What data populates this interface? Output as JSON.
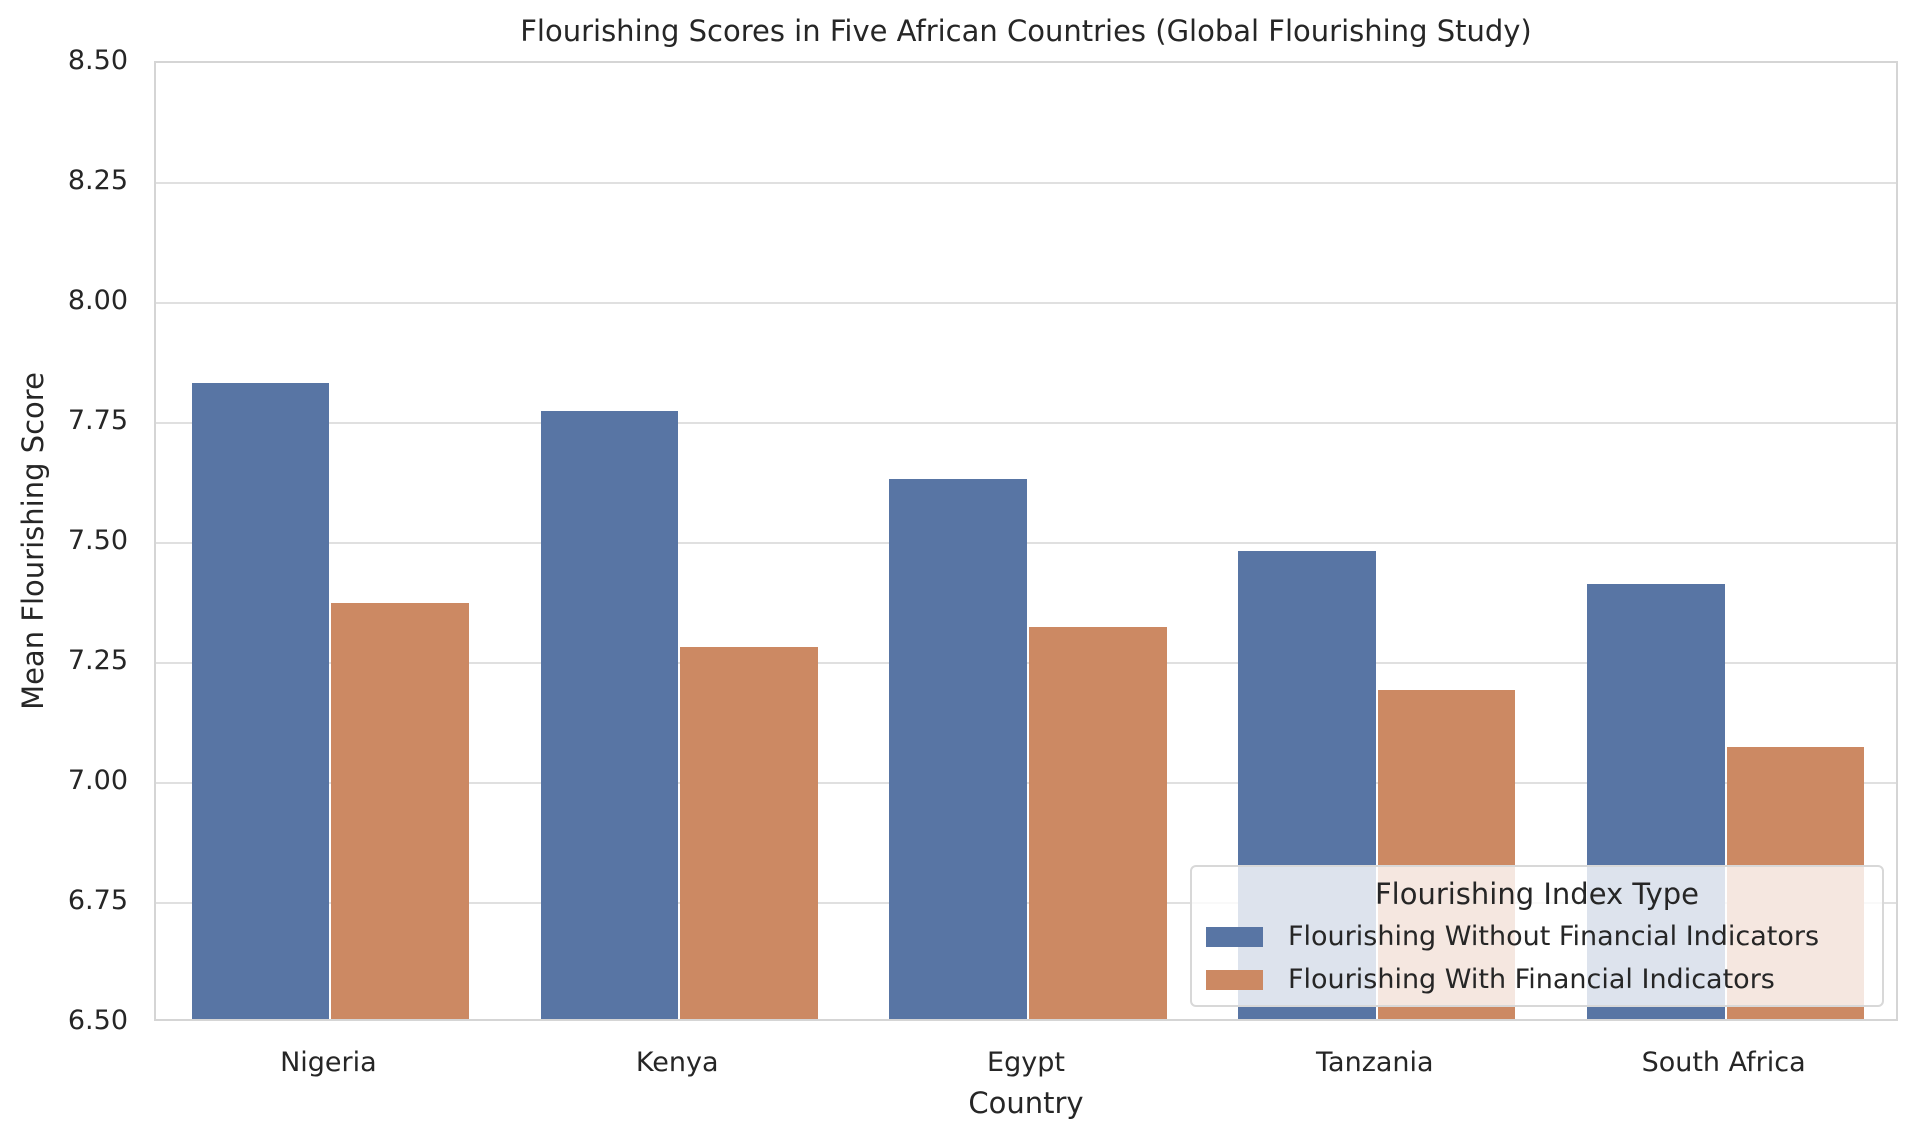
{
  "chart_data": {
    "type": "bar",
    "title": "Flourishing Scores in Five African Countries (Global Flourishing Study)",
    "xlabel": "Country",
    "ylabel": "Mean Flourishing Score",
    "categories": [
      "Nigeria",
      "Kenya",
      "Egypt",
      "Tanzania",
      "South Africa"
    ],
    "series": [
      {
        "name": "Flourishing Without Financial Indicators",
        "color": "#5875a4",
        "values": [
          7.83,
          7.77,
          7.63,
          7.48,
          7.41
        ]
      },
      {
        "name": "Flourishing With Financial Indicators",
        "color": "#cc8963",
        "values": [
          7.37,
          7.28,
          7.32,
          7.19,
          7.07
        ]
      }
    ],
    "ylim": [
      6.5,
      8.5
    ],
    "yticks": [
      "6.50",
      "6.75",
      "7.00",
      "7.25",
      "7.50",
      "7.75",
      "8.00",
      "8.25",
      "8.50"
    ],
    "grid": true,
    "legend": {
      "title": "Flourishing Index Type",
      "position": "lower right"
    }
  }
}
